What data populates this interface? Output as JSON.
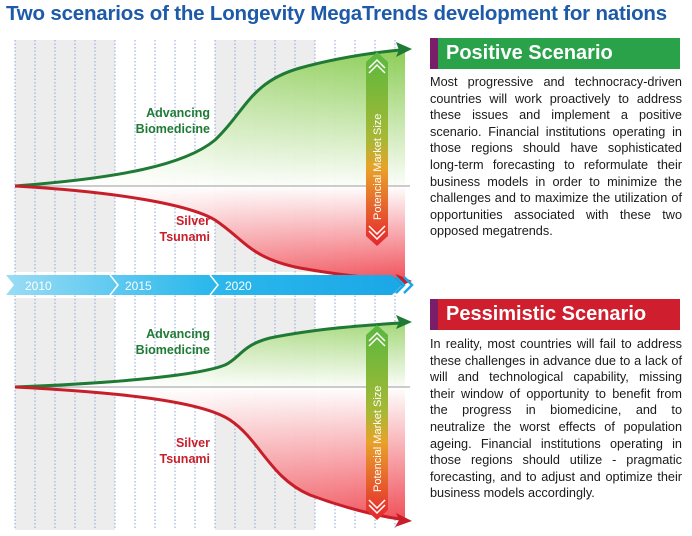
{
  "title": "Two scenarios of the Longevity MegaTrends development for nations",
  "timeline": {
    "years": [
      "2010",
      "2015",
      "2020"
    ]
  },
  "chart_labels": {
    "advancing_line1": "Advancing",
    "advancing_line2": "Biomedicine",
    "silver_line1": "Silver",
    "silver_line2": "Tsunami",
    "market_size": "Potencial Market Size"
  },
  "positive": {
    "heading": "Positive Scenario",
    "text": "Most progressive and technocracy-driven countries will work proactively to address these issues and implement a positive scenario. Financial institutions operating in those regions should have sophisticated long-term forecasting to reformulate their business models in order to minimize the challenges and to maximize the utilization of opportunities associated with these two opposed megatrends."
  },
  "pessimistic": {
    "heading": "Pessimistic Scenario",
    "text": "In reality, most countries will fail to address these challenges in advance due to a lack of will and technological capability, missing their window of opportunity to benefit from the progress in biomedicine, and to neutralize the worst effects of population ageing. Financial institutions operating in those regions should utilize - pragmatic forecasting, and to adjust and optimize their business models accordingly."
  },
  "colors": {
    "title": "#1e5aa8",
    "green": "#1f7a35",
    "red": "#c81e2a",
    "positive_header": "#2aa24a",
    "pessimistic_header": "#cf1f2e",
    "timeline": "#29b6e8"
  }
}
